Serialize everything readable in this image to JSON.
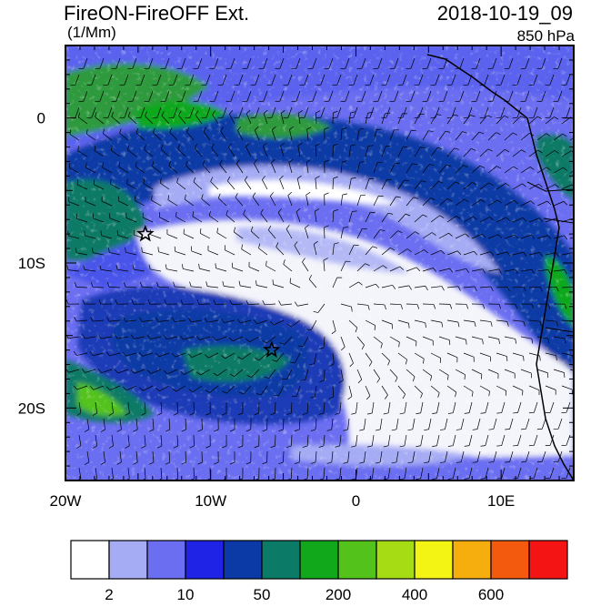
{
  "header": {
    "title": "FireON-FireOFF Ext.",
    "units": "(1/Mm)",
    "datetime": "2018-10-19_09",
    "level": "850 hPa"
  },
  "map": {
    "lon_range": [
      -20,
      15
    ],
    "lat_range": [
      -25,
      5
    ],
    "x_ticks": [
      {
        "value": -20,
        "label": "20W"
      },
      {
        "value": -10,
        "label": "10W"
      },
      {
        "value": 0,
        "label": "0"
      },
      {
        "value": 10,
        "label": "10E"
      }
    ],
    "y_ticks": [
      {
        "value": 0,
        "label": "0"
      },
      {
        "value": -10,
        "label": "10S"
      },
      {
        "value": -20,
        "label": "20S"
      }
    ],
    "markers": [
      {
        "name": "star-marker-1",
        "lon": -14.5,
        "lat": -8.0
      },
      {
        "name": "star-marker-2",
        "lon": -5.8,
        "lat": -16.0
      }
    ]
  },
  "colorbar": {
    "colors": [
      "#ffffff",
      "#a6acf4",
      "#6b6ef0",
      "#1f23e6",
      "#0b3aa6",
      "#0b7a66",
      "#11a81c",
      "#53c21a",
      "#a6dc14",
      "#f4f414",
      "#f6ae0f",
      "#f45a0e",
      "#f41414"
    ],
    "labels": [
      "2",
      "10",
      "50",
      "200",
      "400",
      "600"
    ]
  }
}
